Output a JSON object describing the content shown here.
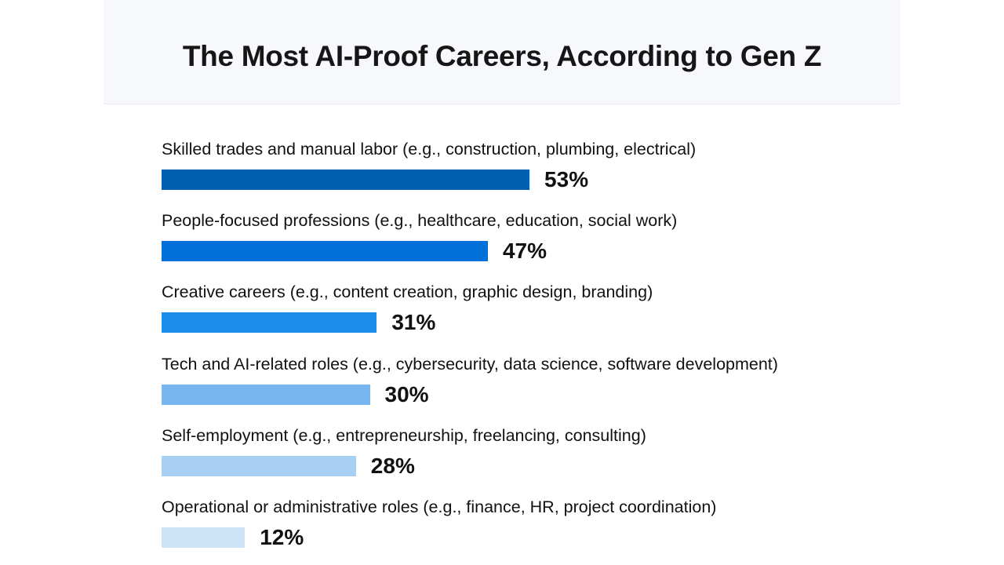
{
  "chart_data": {
    "type": "bar",
    "orientation": "horizontal",
    "title": "The Most AI-Proof Careers, According to Gen Z",
    "xlabel": "",
    "ylabel": "",
    "xlim": [
      0,
      100
    ],
    "unit": "%",
    "grid": false,
    "legend": "none",
    "categories": [
      "Skilled trades and manual labor (e.g., construction, plumbing, electrical)",
      "People-focused professions (e.g., healthcare, education, social work)",
      "Creative careers (e.g., content creation, graphic design, branding)",
      "Tech and AI-related roles (e.g., cybersecurity, data science, software development)",
      "Self-employment (e.g., entrepreneurship, freelancing, consulting)",
      "Operational or administrative roles (e.g., finance, HR, project coordination)"
    ],
    "values": [
      53,
      47,
      31,
      30,
      28,
      12
    ],
    "value_labels": [
      "53%",
      "47%",
      "31%",
      "30%",
      "28%",
      "12%"
    ],
    "colors": [
      "#005eb0",
      "#0170d8",
      "#1b8ce8",
      "#77b6f1",
      "#a6cff3",
      "#cde3f7"
    ]
  }
}
